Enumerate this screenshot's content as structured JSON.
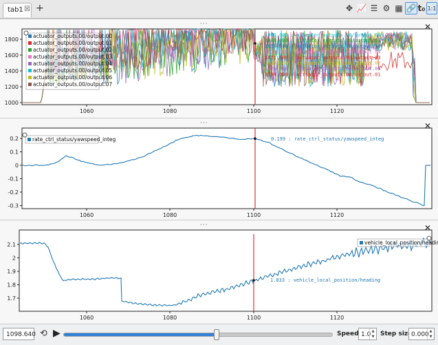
{
  "tabs": [
    {
      "label": "tab1",
      "close": "☒"
    }
  ],
  "tab_add": "+",
  "toolbar": {
    "move_icon": "✥",
    "chart_icon": "📈",
    "list_icon": "☰",
    "gear_icon": "⚙",
    "grid_icon": "▦",
    "link_icon": "🔗",
    "t0_label": "t₀",
    "ratio_label": "1:1"
  },
  "panel_dots": "···",
  "panel_close": "✕",
  "colors": [
    "#1f77b4",
    "#d62728",
    "#2ca02c",
    "#e377c2",
    "#9467bd",
    "#17becf",
    "#bcbd22",
    "#8c564b"
  ],
  "cursor_color": "#e03030",
  "plot1": {
    "yticks": [
      "1800",
      "1600",
      "1400",
      "1200",
      "1000"
    ],
    "xticks": [
      "1060",
      "1080",
      "1100",
      "1120"
    ],
    "legend": [
      "actuator_outputs.00/output.00",
      "actuator_outputs.00/output.01",
      "actuator_outputs.00/output.02",
      "actuator_outputs.00/output.03",
      "actuator_outputs.00/output.04",
      "actuator_outputs.00/output.05",
      "actuator_outputs.00/output.06",
      "actuator_outputs.00/output.07"
    ],
    "tracker": [
      "1900.000 : actuator_outputs.00/output.06",
      "1888.000 : actuator_outputs.00/output.02",
      "1855.000 : actuator_outputs.00/output.00",
      "1813.000 : actuator_outputs.00/output.04",
      "1471.000 : actuator_outputs.00/output.03",
      "1439.000 : actuator_outputs.00/output.07",
      "1426.000 : actuator_outputs.00/output.05",
      "1384.000 : actuator_outputs.00/output.01"
    ],
    "tracker_colors": [
      "#17becf",
      "#2ca02c",
      "#1f77b4",
      "#e377c2",
      "#d62728",
      "#bcbd22",
      "#9467bd",
      "#d62728"
    ]
  },
  "plot2": {
    "yticks": [
      "0.2",
      "0.1",
      "0",
      "-0.1",
      "-0.2",
      "-0.3"
    ],
    "xticks": [
      "1060",
      "1080",
      "1100",
      "1120"
    ],
    "legend": [
      "rate_ctrl_status/yawspeed_integ"
    ],
    "tracker": [
      "0.199 : rate_ctrl_status/yawspeed_integ"
    ]
  },
  "plot3": {
    "yticks": [
      "2.1",
      "2",
      "1.9",
      "1.8",
      "1.7"
    ],
    "xticks": [
      "1060",
      "1080",
      "1100",
      "1120"
    ],
    "legend": [
      "vehicle_local_position/heading"
    ],
    "tracker": [
      "1.833 : vehicle_local_position/heading"
    ]
  },
  "bottom": {
    "time_value": "1098.640",
    "loop_icon": "⟲",
    "play_icon": "▶",
    "progress": 0.57,
    "speed_label": "Speed:",
    "speed_value": "1.0",
    "step_label": "Step size:",
    "step_value": "0.000",
    "spin_up": "▲",
    "spin_down": "▼"
  }
}
